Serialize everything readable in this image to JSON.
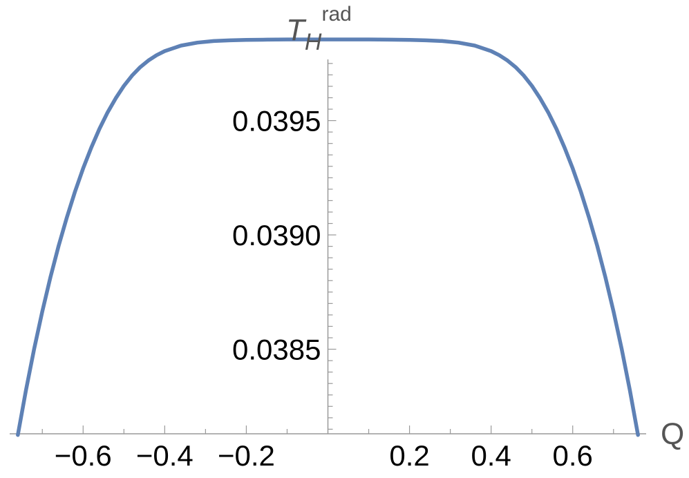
{
  "chart_data": {
    "type": "line",
    "title": "",
    "xlabel": "Q",
    "ylabel": {
      "main": "T",
      "subscript": "H",
      "superscript": "rad"
    },
    "xlim": [
      -0.78,
      0.78
    ],
    "ylim": [
      0.03813,
      0.03981
    ],
    "xticks": [
      -0.6,
      -0.4,
      -0.2,
      0.2,
      0.4,
      0.6
    ],
    "xtick_labels": [
      "−0.6",
      "−0.4",
      "−0.2",
      "0.2",
      "0.4",
      "0.6"
    ],
    "yticks": [
      0.0385,
      0.039,
      0.0395
    ],
    "ytick_labels": [
      "0.0385",
      "0.0390",
      "0.0395"
    ],
    "grid": false,
    "legend": "none",
    "series": [
      {
        "color": "#5e81b5",
        "x": [
          -0.76,
          -0.74,
          -0.72,
          -0.7,
          -0.68,
          -0.66,
          -0.64,
          -0.62,
          -0.6,
          -0.58,
          -0.56,
          -0.54,
          -0.52,
          -0.5,
          -0.48,
          -0.46,
          -0.44,
          -0.42,
          -0.4,
          -0.36,
          -0.32,
          -0.28,
          -0.24,
          -0.2,
          -0.15,
          -0.1,
          -0.05,
          0,
          0.05,
          0.1,
          0.15,
          0.2,
          0.24,
          0.28,
          0.32,
          0.36,
          0.4,
          0.42,
          0.44,
          0.46,
          0.48,
          0.5,
          0.52,
          0.54,
          0.56,
          0.58,
          0.6,
          0.62,
          0.64,
          0.66,
          0.68,
          0.7,
          0.72,
          0.74,
          0.76
        ],
        "y": [
          0.038125,
          0.038321,
          0.038501,
          0.038665,
          0.038815,
          0.038952,
          0.039076,
          0.039189,
          0.039291,
          0.039382,
          0.039464,
          0.039536,
          0.039598,
          0.039652,
          0.039697,
          0.039734,
          0.039763,
          0.039786,
          0.039804,
          0.039828,
          0.039841,
          0.039848,
          0.039851,
          0.039853,
          0.039854,
          0.039855,
          0.039855,
          0.039855,
          0.039855,
          0.039855,
          0.039854,
          0.039853,
          0.039851,
          0.039848,
          0.039841,
          0.039828,
          0.039804,
          0.039786,
          0.039763,
          0.039734,
          0.039697,
          0.039652,
          0.039598,
          0.039536,
          0.039464,
          0.039382,
          0.039291,
          0.039189,
          0.039076,
          0.038952,
          0.038815,
          0.038665,
          0.038501,
          0.038321,
          0.038125
        ]
      }
    ]
  }
}
